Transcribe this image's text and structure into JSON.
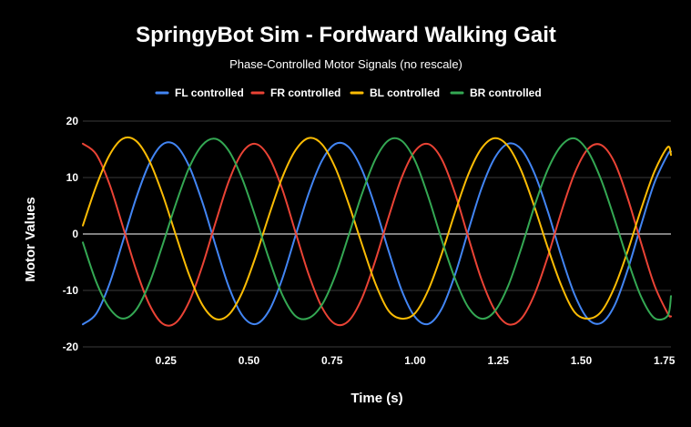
{
  "chart_data": {
    "type": "line",
    "title": "SpringyBot Sim - Fordward Walking Gait",
    "subtitle": "Phase-Controlled Motor Signals (no rescale)",
    "xlabel": "Time (s)",
    "ylabel": "Motor Values",
    "xlim": [
      0,
      1.77
    ],
    "ylim": [
      -20,
      20
    ],
    "x_ticks": [
      0.25,
      0.5,
      0.75,
      1.0,
      1.25,
      1.5,
      1.75
    ],
    "x_tick_labels": [
      "0.25",
      "0.50",
      "0.75",
      "1.00",
      "1.25",
      "1.50",
      "1.75"
    ],
    "y_ticks": [
      20,
      10,
      0,
      -10,
      -20
    ],
    "y_tick_labels": [
      "20",
      "10",
      "0",
      "-10",
      "-20"
    ],
    "grid": true,
    "legend_position": "top",
    "x": [
      0.0,
      0.04,
      0.08,
      0.12,
      0.16,
      0.2,
      0.24,
      0.28,
      0.32,
      0.36,
      0.4,
      0.44,
      0.48,
      0.52,
      0.56,
      0.6,
      0.64,
      0.68,
      0.72,
      0.76,
      0.8,
      0.84,
      0.88,
      0.92,
      0.96,
      1.0,
      1.04,
      1.08,
      1.12,
      1.16,
      1.2,
      1.24,
      1.28,
      1.32,
      1.36,
      1.4,
      1.44,
      1.48,
      1.52,
      1.56,
      1.6,
      1.64,
      1.68,
      1.72,
      1.76,
      1.77
    ],
    "series": [
      {
        "name": "FL controlled",
        "color": "#4285f4",
        "values": [
          -16.0,
          -14.14,
          -8.86,
          -1.39,
          6.29,
          12.46,
          15.88,
          15.71,
          11.99,
          5.59,
          -2.14,
          -9.47,
          -14.45,
          -15.96,
          -13.62,
          -7.97,
          -0.31,
          7.23,
          13.03,
          15.96,
          15.39,
          11.37,
          4.77,
          -2.96,
          -10.06,
          -14.72,
          -15.93,
          -13.25,
          -7.23,
          0.58,
          8.1,
          13.51,
          16.0,
          14.97,
          10.61,
          3.88,
          -3.91,
          -10.75,
          -15.05,
          -15.76,
          -12.69,
          -6.29,
          1.58,
          9.04,
          14.05,
          14.6
        ]
      },
      {
        "name": "FR controlled",
        "color": "#ea4335",
        "values": [
          16.0,
          14.14,
          8.86,
          1.39,
          -6.29,
          -12.46,
          -15.88,
          -15.71,
          -11.99,
          -5.59,
          2.14,
          9.47,
          14.45,
          15.96,
          13.62,
          7.97,
          0.31,
          -7.23,
          -13.03,
          -15.96,
          -15.39,
          -11.37,
          -4.77,
          2.96,
          10.06,
          14.72,
          15.93,
          13.25,
          7.23,
          -0.58,
          -8.1,
          -13.51,
          -16.0,
          -14.97,
          -10.61,
          -3.88,
          3.91,
          10.75,
          15.05,
          15.76,
          12.69,
          6.29,
          -1.58,
          -9.04,
          -14.05,
          -14.6
        ]
      },
      {
        "name": "BL controlled",
        "color": "#fbbc04",
        "values": [
          1.5,
          8.45,
          13.96,
          16.88,
          16.5,
          12.97,
          7.0,
          -0.22,
          -7.26,
          -12.59,
          -15.06,
          -14.25,
          -10.31,
          -4.02,
          3.24,
          9.98,
          14.84,
          17.0,
          15.87,
          11.71,
          5.34,
          -1.84,
          -8.71,
          -13.59,
          -15.0,
          -14.02,
          -9.88,
          -3.52,
          3.8,
          10.54,
          15.18,
          16.98,
          15.53,
          11.14,
          4.67,
          -2.56,
          -9.13,
          -13.85,
          -15.0,
          -13.77,
          -9.43,
          -2.99,
          4.38,
          11.03,
          15.39,
          14.0
        ]
      },
      {
        "name": "BR controlled",
        "color": "#34a853",
        "values": [
          -1.5,
          -8.45,
          -13.14,
          -14.98,
          -13.45,
          -8.74,
          -1.94,
          5.36,
          11.75,
          15.78,
          16.85,
          14.66,
          9.73,
          2.95,
          -4.35,
          -10.75,
          -14.53,
          -14.89,
          -12.5,
          -7.32,
          -0.25,
          7.1,
          13.2,
          16.59,
          16.49,
          12.93,
          6.53,
          -1.03,
          -7.9,
          -12.99,
          -15.0,
          -13.66,
          -9.2,
          -2.44,
          5.08,
          11.52,
          15.66,
          16.93,
          14.65,
          9.58,
          2.68,
          -4.67,
          -11.1,
          -14.89,
          -14.49,
          -11.0
        ]
      }
    ]
  }
}
